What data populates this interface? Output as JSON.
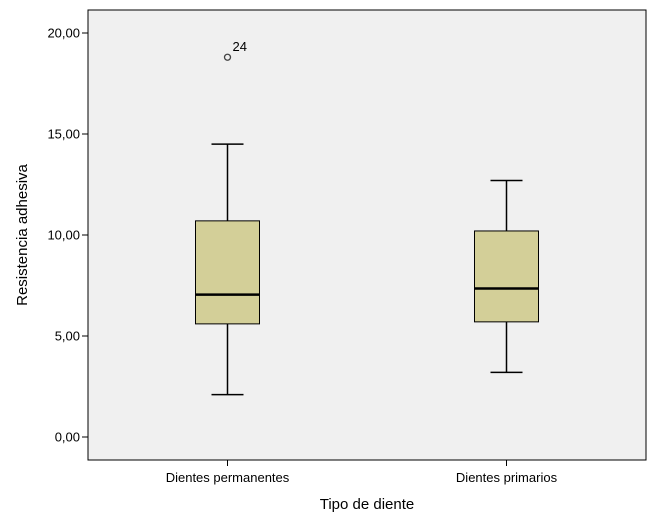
{
  "chart_data": {
    "type": "boxplot",
    "title": "",
    "xlabel": "Tipo de diente",
    "ylabel": "Resistencia adhesiva",
    "ylim": [
      -0.5,
      21.0
    ],
    "y_ticks": [
      "0,00",
      "5,00",
      "10,00",
      "15,00",
      "20,00"
    ],
    "y_tick_values": [
      0,
      5,
      10,
      15,
      20
    ],
    "grid": false,
    "plot_background": "#f0f0f0",
    "box_color": "#d3cf98",
    "categories": [
      "Dientes permanentes",
      "Dientes primarios"
    ],
    "boxes": [
      {
        "category": "Dientes permanentes",
        "min": 2.1,
        "q1": 5.6,
        "median": 7.05,
        "q3": 10.7,
        "max": 14.5,
        "outliers": [
          {
            "value": 18.8,
            "label": "24"
          }
        ]
      },
      {
        "category": "Dientes primarios",
        "min": 3.2,
        "q1": 5.7,
        "median": 7.35,
        "q3": 10.2,
        "max": 12.7,
        "outliers": []
      }
    ]
  }
}
